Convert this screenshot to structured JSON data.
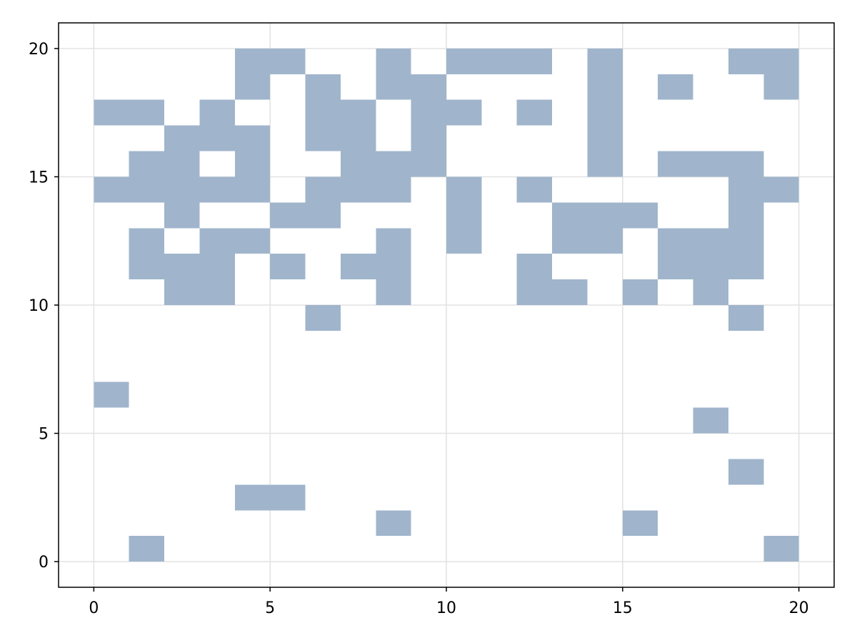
{
  "chart_data": {
    "type": "heatmap",
    "title": "",
    "xlabel": "",
    "ylabel": "",
    "xlim": [
      -1,
      21
    ],
    "ylim": [
      -1,
      21
    ],
    "xticks": [
      0,
      5,
      10,
      15,
      20
    ],
    "yticks": [
      0,
      5,
      10,
      15,
      20
    ],
    "x_tick_labels": [
      "0",
      "5",
      "10",
      "15",
      "20"
    ],
    "y_tick_labels": [
      "0",
      "5",
      "10",
      "15",
      "20"
    ],
    "grid": true,
    "legend": "none",
    "cell_size": 1,
    "filled_cells": [
      [
        1,
        0
      ],
      [
        8,
        1
      ],
      [
        15,
        1
      ],
      [
        19,
        0
      ],
      [
        4,
        2
      ],
      [
        5,
        2
      ],
      [
        18,
        3
      ],
      [
        17,
        5
      ],
      [
        0,
        6
      ],
      [
        6,
        9
      ],
      [
        18,
        9
      ],
      [
        2,
        10
      ],
      [
        3,
        10
      ],
      [
        8,
        10
      ],
      [
        12,
        10
      ],
      [
        13,
        10
      ],
      [
        15,
        10
      ],
      [
        17,
        10
      ],
      [
        1,
        11
      ],
      [
        2,
        11
      ],
      [
        3,
        11
      ],
      [
        5,
        11
      ],
      [
        7,
        11
      ],
      [
        8,
        11
      ],
      [
        12,
        11
      ],
      [
        16,
        11
      ],
      [
        17,
        11
      ],
      [
        18,
        11
      ],
      [
        1,
        12
      ],
      [
        3,
        12
      ],
      [
        4,
        12
      ],
      [
        8,
        12
      ],
      [
        10,
        12
      ],
      [
        13,
        12
      ],
      [
        14,
        12
      ],
      [
        16,
        12
      ],
      [
        17,
        12
      ],
      [
        18,
        12
      ],
      [
        2,
        13
      ],
      [
        5,
        13
      ],
      [
        6,
        13
      ],
      [
        10,
        13
      ],
      [
        13,
        13
      ],
      [
        14,
        13
      ],
      [
        15,
        13
      ],
      [
        18,
        13
      ],
      [
        0,
        14
      ],
      [
        1,
        14
      ],
      [
        2,
        14
      ],
      [
        3,
        14
      ],
      [
        4,
        14
      ],
      [
        6,
        14
      ],
      [
        7,
        14
      ],
      [
        8,
        14
      ],
      [
        10,
        14
      ],
      [
        12,
        14
      ],
      [
        18,
        14
      ],
      [
        19,
        14
      ],
      [
        1,
        15
      ],
      [
        2,
        15
      ],
      [
        4,
        15
      ],
      [
        7,
        15
      ],
      [
        8,
        15
      ],
      [
        9,
        15
      ],
      [
        14,
        15
      ],
      [
        16,
        15
      ],
      [
        17,
        15
      ],
      [
        18,
        15
      ],
      [
        2,
        16
      ],
      [
        3,
        16
      ],
      [
        4,
        16
      ],
      [
        6,
        16
      ],
      [
        7,
        16
      ],
      [
        9,
        16
      ],
      [
        14,
        16
      ],
      [
        0,
        17
      ],
      [
        1,
        17
      ],
      [
        3,
        17
      ],
      [
        6,
        17
      ],
      [
        7,
        17
      ],
      [
        9,
        17
      ],
      [
        10,
        17
      ],
      [
        12,
        17
      ],
      [
        14,
        17
      ],
      [
        4,
        18
      ],
      [
        6,
        18
      ],
      [
        8,
        18
      ],
      [
        9,
        18
      ],
      [
        14,
        18
      ],
      [
        16,
        18
      ],
      [
        19,
        18
      ],
      [
        4,
        19
      ],
      [
        5,
        19
      ],
      [
        8,
        19
      ],
      [
        10,
        19
      ],
      [
        11,
        19
      ],
      [
        12,
        19
      ],
      [
        14,
        19
      ],
      [
        18,
        19
      ],
      [
        19,
        19
      ]
    ],
    "colors": {
      "cell": "#a0b5cc",
      "grid": "#e2e2e2",
      "axis": "#000000",
      "background": "#ffffff"
    }
  }
}
